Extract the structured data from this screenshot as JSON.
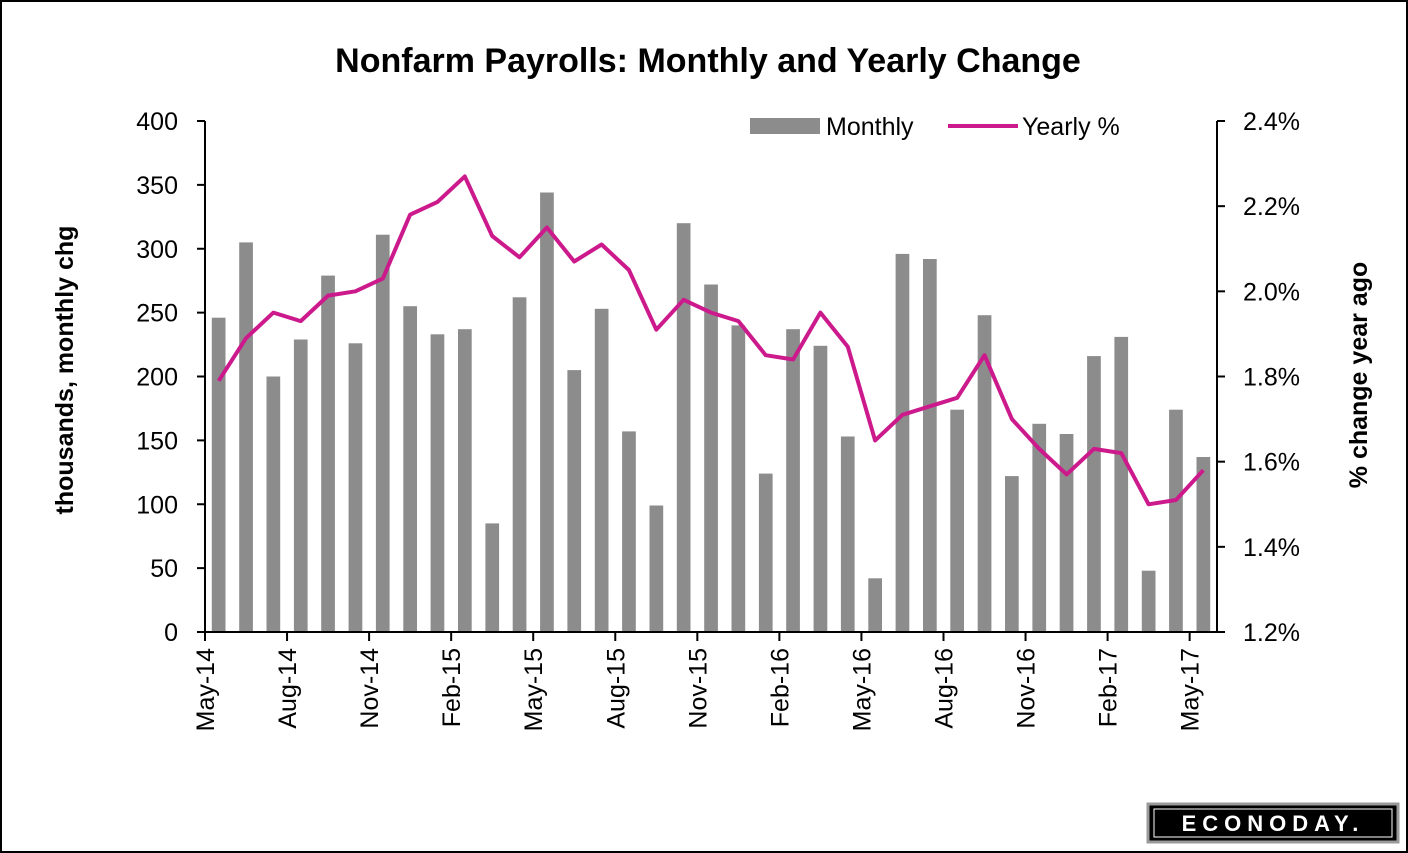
{
  "chart_data": {
    "type": "bar",
    "title": "Nonfarm Payrolls: Monthly and Yearly Change",
    "ylabel": "thousands, monthly chg",
    "y2label": "% change year ago",
    "ylim": [
      0,
      400
    ],
    "y2lim": [
      1.2,
      2.4
    ],
    "yticks": [
      "0",
      "50",
      "100",
      "150",
      "200",
      "250",
      "300",
      "350",
      "400"
    ],
    "y2ticks": [
      "1.2%",
      "1.4%",
      "1.6%",
      "1.8%",
      "2.0%",
      "2.2%",
      "2.4%"
    ],
    "xtick_labels": [
      "May-14",
      "Aug-14",
      "Nov-14",
      "Feb-15",
      "May-15",
      "Aug-15",
      "Nov-15",
      "Feb-16",
      "May-16",
      "Aug-16",
      "Nov-16",
      "Feb-17",
      "May-17"
    ],
    "categories": [
      "May-14",
      "Jun-14",
      "Jul-14",
      "Aug-14",
      "Sep-14",
      "Oct-14",
      "Nov-14",
      "Dec-14",
      "Jan-15",
      "Feb-15",
      "Mar-15",
      "Apr-15",
      "May-15",
      "Jun-15",
      "Jul-15",
      "Aug-15",
      "Sep-15",
      "Oct-15",
      "Nov-15",
      "Dec-15",
      "Jan-16",
      "Feb-16",
      "Mar-16",
      "Apr-16",
      "May-16",
      "Jun-16",
      "Jul-16",
      "Aug-16",
      "Sep-16",
      "Oct-16",
      "Nov-16",
      "Dec-16",
      "Jan-17",
      "Feb-17",
      "Mar-17",
      "Apr-17",
      "May-17"
    ],
    "series": [
      {
        "name": "Monthly",
        "kind": "bar",
        "axis": "left",
        "color": "#8c8c8c",
        "values": [
          246,
          305,
          200,
          229,
          279,
          226,
          311,
          255,
          233,
          237,
          85,
          262,
          344,
          205,
          253,
          157,
          99,
          320,
          272,
          240,
          124,
          237,
          224,
          153,
          42,
          296,
          292,
          174,
          248,
          122,
          163,
          155,
          216,
          231,
          48,
          174,
          137
        ]
      },
      {
        "name": "Yearly %",
        "kind": "line",
        "axis": "right",
        "color": "#cc1a8c",
        "values": [
          1.79,
          1.89,
          1.95,
          1.93,
          1.99,
          2.0,
          2.03,
          2.18,
          2.21,
          2.27,
          2.13,
          2.08,
          2.15,
          2.07,
          2.11,
          2.05,
          1.91,
          1.98,
          1.95,
          1.93,
          1.85,
          1.84,
          1.95,
          1.87,
          1.65,
          1.71,
          1.73,
          1.75,
          1.85,
          1.7,
          1.63,
          1.57,
          1.63,
          1.62,
          1.5,
          1.51,
          1.58
        ]
      }
    ],
    "legend_position": "top-right",
    "grid": false
  },
  "branding": {
    "logo_text": "ECONODAY."
  }
}
